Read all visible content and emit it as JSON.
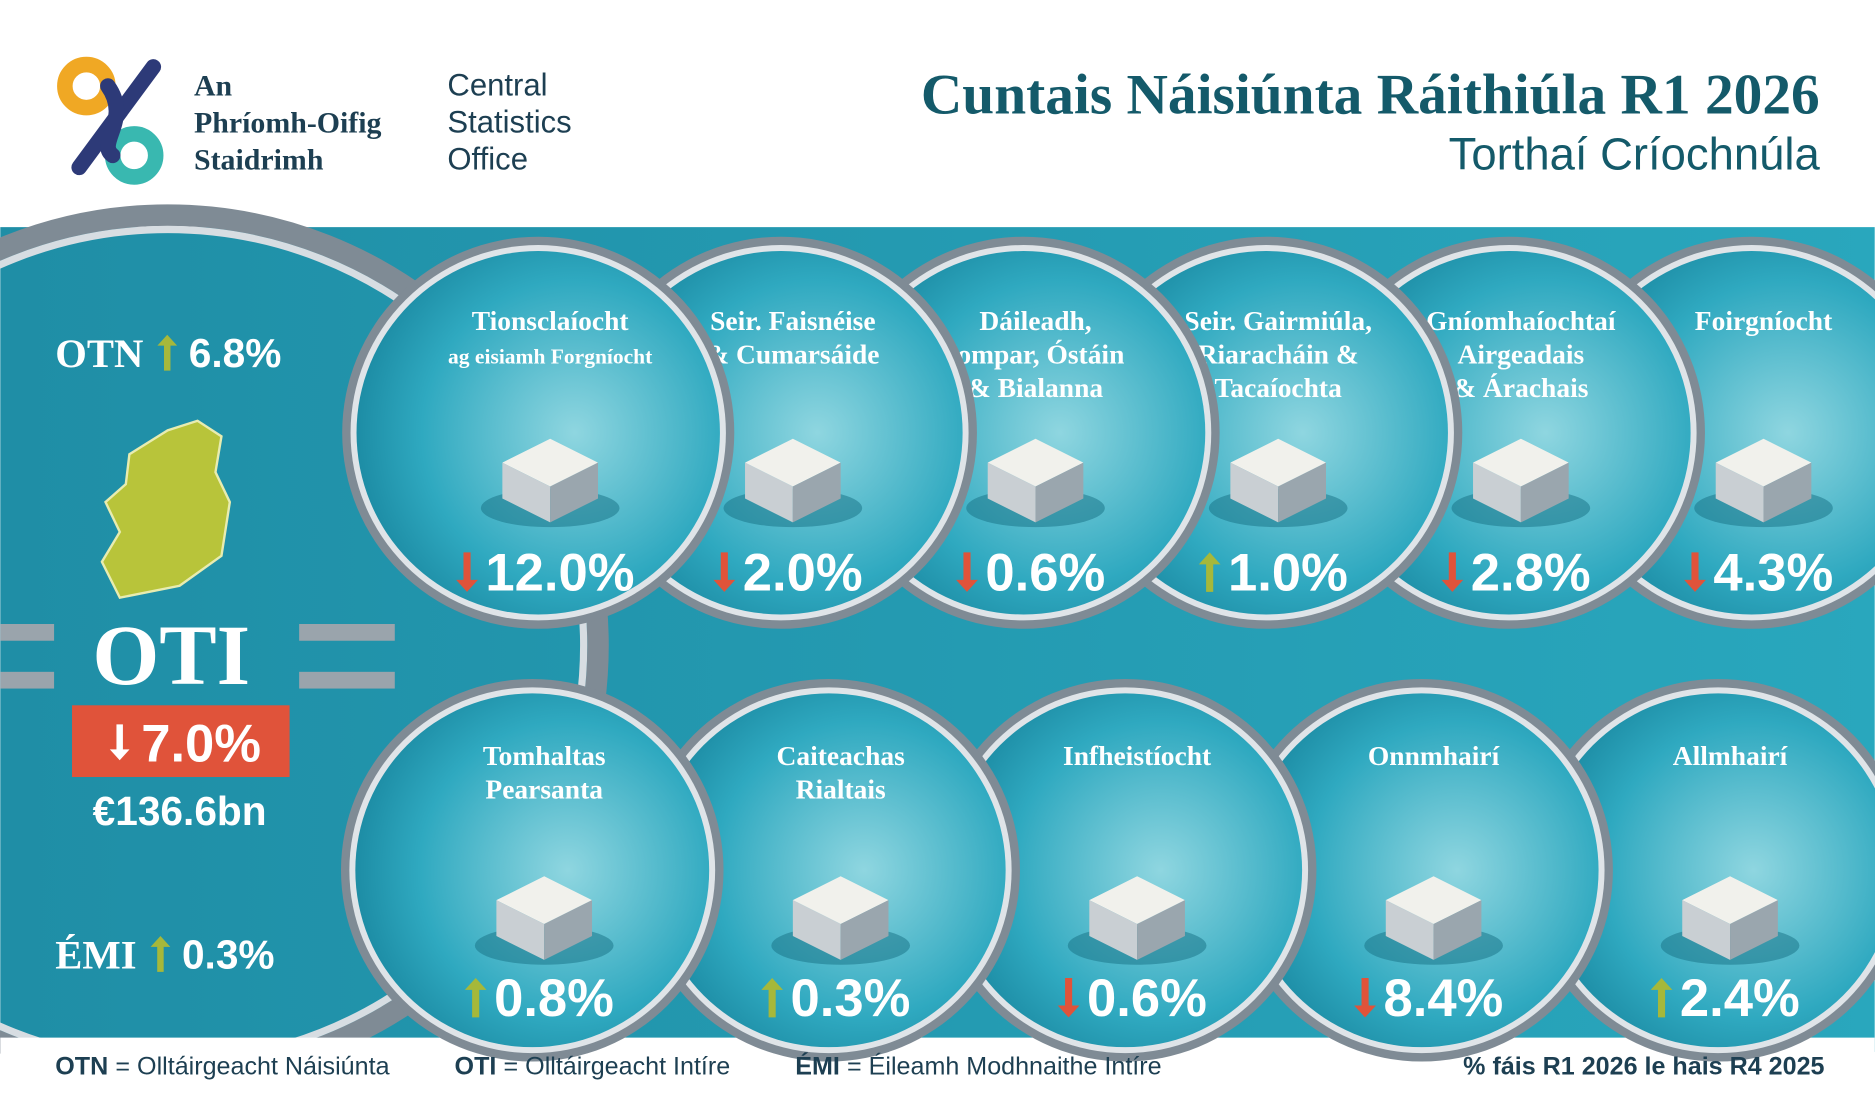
{
  "logo": {
    "irish": [
      "An",
      "Phríomh-Oifig",
      "Staidrimh"
    ],
    "english": [
      "Central",
      "Statistics",
      "Office"
    ]
  },
  "header": {
    "title": "Cuntais Náisiúnta Ráithiúla R1 2026",
    "subtitle": "Torthaí Críochnúla"
  },
  "summary": {
    "otn": {
      "label": "OTN",
      "change": "6.8%",
      "direction": "up"
    },
    "oti": {
      "label": "OTI",
      "change": "7.0%",
      "direction": "down",
      "amount": "€136.6bn"
    },
    "emi": {
      "label": "ÉMI",
      "change": "0.3%",
      "direction": "up"
    }
  },
  "sectors": [
    {
      "lines": [
        "Tionsclaíocht",
        "ag eisiamh Forgníocht"
      ],
      "change": "12.0%",
      "direction": "down"
    },
    {
      "lines": [
        "Seir. Faisnéise",
        "& Cumarsáide"
      ],
      "change": "2.0%",
      "direction": "down"
    },
    {
      "lines": [
        "Dáileadh,",
        "Iompar, Óstáin",
        "& Bialanna"
      ],
      "change": "0.6%",
      "direction": "down"
    },
    {
      "lines": [
        "Seir. Gairmiúla,",
        "Riaracháin &",
        "Tacaíochta"
      ],
      "change": "1.0%",
      "direction": "up"
    },
    {
      "lines": [
        "Gníomhaíochtaí",
        "Airgeadais",
        "& Árachais"
      ],
      "change": "2.8%",
      "direction": "down"
    },
    {
      "lines": [
        "Foirgníocht"
      ],
      "change": "4.3%",
      "direction": "down"
    }
  ],
  "expenditure": [
    {
      "lines": [
        "Tomhaltas",
        "Pearsanta"
      ],
      "change": "0.8%",
      "direction": "up"
    },
    {
      "lines": [
        "Caiteachas",
        "Rialtais"
      ],
      "change": "0.3%",
      "direction": "up"
    },
    {
      "lines": [
        "Infheistíocht"
      ],
      "change": "0.6%",
      "direction": "down"
    },
    {
      "lines": [
        "Onnmhairí"
      ],
      "change": "8.4%",
      "direction": "down"
    },
    {
      "lines": [
        "Allmhairí"
      ],
      "change": "2.4%",
      "direction": "up"
    }
  ],
  "footer": {
    "legend": [
      {
        "abbr": "OTN",
        "text": "= Olltáirgeacht Náisiúnta"
      },
      {
        "abbr": "OTI",
        "text": "= Olltáirgeacht Intíre"
      },
      {
        "abbr": "ÉMI",
        "text": "= Éileamh Modhnaithe Intíre"
      }
    ],
    "note": "% fáis R1 2026 le hais R4 2025"
  }
}
